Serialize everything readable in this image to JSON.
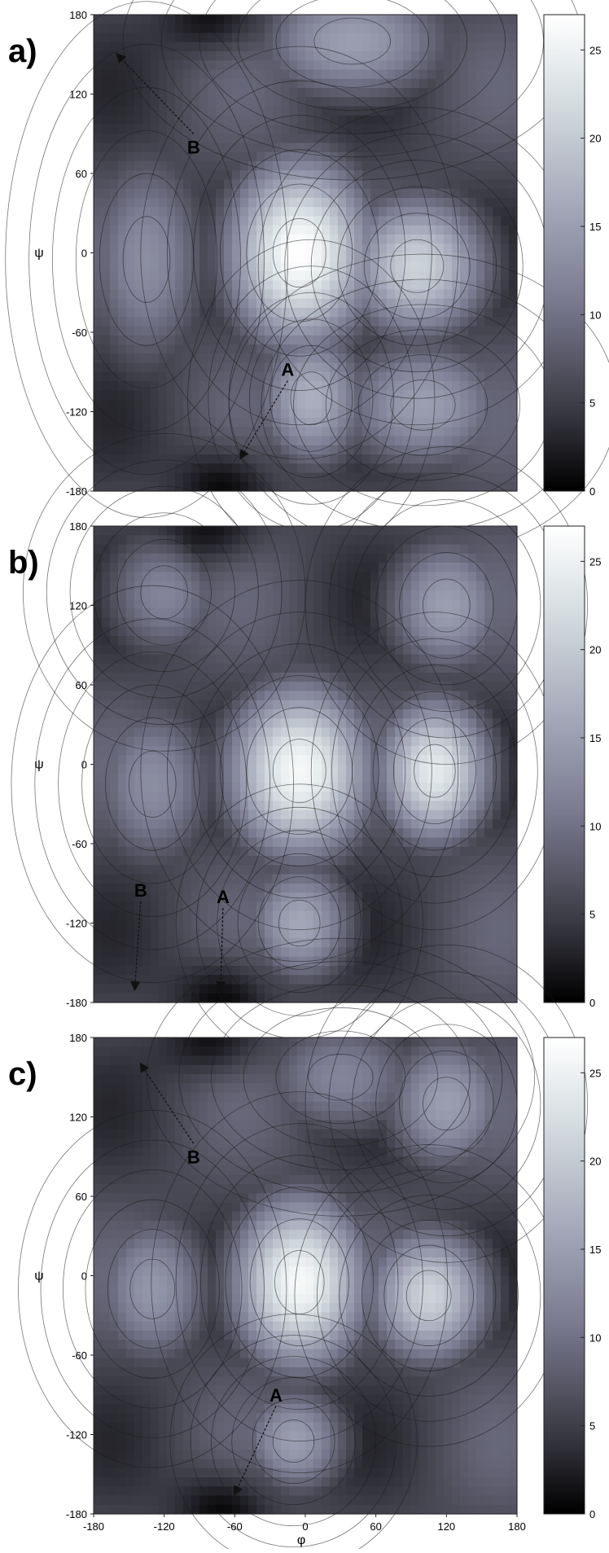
{
  "figure": {
    "x_axis_label": "φ",
    "y_axis_label": "ψ",
    "colorbar_label": ""
  },
  "chart_data": [
    {
      "type": "heatmap",
      "panel_label": "a)",
      "xlabel": "",
      "ylabel": "ψ",
      "xlim": [
        -180,
        180
      ],
      "ylim": [
        -180,
        180
      ],
      "yticks": [
        "180",
        "120",
        "60",
        "0",
        "-60",
        "-120",
        "-180"
      ],
      "colorbar": {
        "range": [
          0,
          27
        ],
        "ticks": [
          "25",
          "20",
          "15",
          "10",
          "5",
          "0"
        ]
      },
      "peaks": [
        {
          "phi": -5,
          "psi": 0,
          "value": 27,
          "sx": 45,
          "sy": 52
        },
        {
          "phi": 95,
          "psi": -10,
          "value": 21,
          "sx": 45,
          "sy": 40
        },
        {
          "phi": 5,
          "psi": -110,
          "value": 17,
          "sx": 35,
          "sy": 40
        },
        {
          "phi": 40,
          "psi": 160,
          "value": 15,
          "sx": 65,
          "sy": 35
        },
        {
          "phi": -135,
          "psi": -5,
          "value": 13,
          "sx": 40,
          "sy": 65
        },
        {
          "phi": 100,
          "psi": -115,
          "value": 15,
          "sx": 55,
          "sy": 38
        }
      ],
      "annotations": [
        {
          "label": "B",
          "phi": -95,
          "psi": 80,
          "arrow_to": [
            -160,
            150
          ]
        },
        {
          "label": "A",
          "phi": -15,
          "psi": -88,
          "arrow_to": [
            -55,
            -155
          ]
        }
      ]
    },
    {
      "type": "heatmap",
      "panel_label": "b)",
      "xlabel": "",
      "ylabel": "ψ",
      "xlim": [
        -180,
        180
      ],
      "ylim": [
        -180,
        180
      ],
      "yticks": [
        "180",
        "120",
        "60",
        "0",
        "-60",
        "-120",
        "-180"
      ],
      "colorbar": {
        "range": [
          0,
          27
        ],
        "ticks": [
          "25",
          "20",
          "15",
          "10",
          "5",
          "0"
        ]
      },
      "peaks": [
        {
          "phi": -5,
          "psi": -5,
          "value": 26,
          "sx": 45,
          "sy": 48
        },
        {
          "phi": 110,
          "psi": -5,
          "value": 24,
          "sx": 35,
          "sy": 40
        },
        {
          "phi": -5,
          "psi": -120,
          "value": 16,
          "sx": 35,
          "sy": 35
        },
        {
          "phi": 120,
          "psi": 120,
          "value": 15,
          "sx": 40,
          "sy": 40
        },
        {
          "phi": -120,
          "psi": 130,
          "value": 12,
          "sx": 40,
          "sy": 40
        },
        {
          "phi": -130,
          "psi": -15,
          "value": 13,
          "sx": 40,
          "sy": 50
        }
      ],
      "annotations": [
        {
          "label": "B",
          "phi": -140,
          "psi": -95,
          "arrow_to": [
            -145,
            -170
          ]
        },
        {
          "label": "A",
          "phi": -70,
          "psi": -100,
          "arrow_to": [
            -72,
            -170
          ]
        }
      ]
    },
    {
      "type": "heatmap",
      "panel_label": "c)",
      "xlabel": "φ",
      "ylabel": "ψ",
      "xlim": [
        -180,
        180
      ],
      "ylim": [
        -180,
        180
      ],
      "xticks": [
        "-180",
        "-120",
        "-60",
        "0",
        "60",
        "120",
        "180"
      ],
      "yticks": [
        "180",
        "120",
        "60",
        "0",
        "-60",
        "-120",
        "-180"
      ],
      "colorbar": {
        "range": [
          0,
          27
        ],
        "ticks": [
          "25",
          "20",
          "15",
          "10",
          "5",
          "0"
        ]
      },
      "peaks": [
        {
          "phi": -5,
          "psi": -5,
          "value": 26,
          "sx": 42,
          "sy": 48
        },
        {
          "phi": 105,
          "psi": -15,
          "value": 21,
          "sx": 38,
          "sy": 38
        },
        {
          "phi": -130,
          "psi": -10,
          "value": 14,
          "sx": 38,
          "sy": 45
        },
        {
          "phi": 120,
          "psi": 130,
          "value": 15,
          "sx": 40,
          "sy": 40
        },
        {
          "phi": -10,
          "psi": -125,
          "value": 15,
          "sx": 35,
          "sy": 32
        },
        {
          "phi": 30,
          "psi": 150,
          "value": 12,
          "sx": 55,
          "sy": 35
        }
      ],
      "annotations": [
        {
          "label": "B",
          "phi": -95,
          "psi": 90,
          "arrow_to": [
            -140,
            160
          ]
        },
        {
          "label": "A",
          "phi": -25,
          "psi": -90,
          "arrow_to": [
            -60,
            -165
          ]
        }
      ]
    }
  ]
}
